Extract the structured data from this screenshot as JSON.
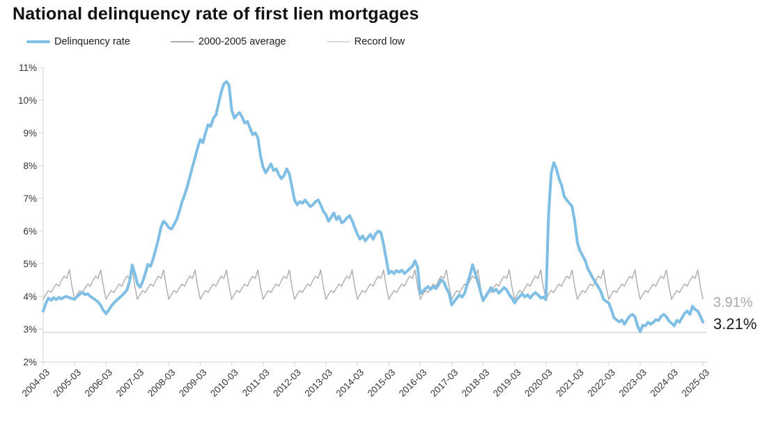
{
  "title": "National delinquency rate of first lien mortgages",
  "legend": {
    "items": [
      {
        "label": "Delinquency rate",
        "color": "#7fbee5",
        "thickness": 4
      },
      {
        "label": "2000-2005 average",
        "color": "#ababab",
        "thickness": 2
      },
      {
        "label": "Record low",
        "color": "#d9d9d9",
        "thickness": 2
      }
    ]
  },
  "annotations": {
    "avg_end_label": "3.91%",
    "avg_end_color": "#a8a8a8",
    "rate_end_label": "3.21%",
    "rate_end_color": "#1a1a1a"
  },
  "colors": {
    "axis": "#d9d9d9",
    "tick": "#d9d9d9",
    "tick_label": "#333333",
    "delinquency_line": "#7fbee5",
    "average_line": "#ababab",
    "record_low_line": "#d9d9d9"
  },
  "chart_data": {
    "type": "line",
    "title": "National delinquency rate of first lien mortgages",
    "xlabel": "",
    "ylabel": "",
    "ylim": [
      2,
      11
    ],
    "grid": false,
    "legend_position": "top",
    "y_tick_labels": [
      "2%",
      "3%",
      "4%",
      "5%",
      "6%",
      "7%",
      "8%",
      "9%",
      "10%",
      "11%"
    ],
    "y_tick_values": [
      2,
      3,
      4,
      5,
      6,
      7,
      8,
      9,
      10,
      11
    ],
    "x_tick_labels": [
      "2004-03",
      "2005-03",
      "2006-03",
      "2007-03",
      "2008-03",
      "2009-03",
      "2010-03",
      "2011-03",
      "2012-03",
      "2013-03",
      "2014-03",
      "2015-03",
      "2016-03",
      "2017-03",
      "2018-03",
      "2019-03",
      "2020-03",
      "2021-03",
      "2022-03",
      "2023-03",
      "2024-03",
      "2025-03"
    ],
    "x_frequency": "monthly",
    "x_start": "2004-03",
    "x_end": "2025-03",
    "series": [
      {
        "name": "Delinquency rate",
        "color": "#7fbee5",
        "stroke_width": 4,
        "end_value_label": "3.21%",
        "values": [
          3.55,
          3.78,
          3.95,
          3.88,
          3.96,
          3.9,
          3.97,
          3.92,
          3.98,
          4.0,
          3.96,
          3.93,
          3.91,
          4.0,
          4.07,
          4.12,
          4.05,
          4.08,
          4.0,
          3.95,
          3.89,
          3.83,
          3.72,
          3.57,
          3.47,
          3.58,
          3.7,
          3.8,
          3.88,
          3.95,
          4.02,
          4.1,
          4.2,
          4.45,
          4.96,
          4.7,
          4.38,
          4.28,
          4.45,
          4.7,
          4.98,
          4.92,
          5.15,
          5.44,
          5.75,
          6.12,
          6.3,
          6.22,
          6.1,
          6.06,
          6.2,
          6.35,
          6.6,
          6.88,
          7.1,
          7.35,
          7.65,
          7.95,
          8.25,
          8.55,
          8.8,
          8.7,
          9.0,
          9.25,
          9.2,
          9.45,
          9.55,
          9.9,
          10.25,
          10.5,
          10.57,
          10.45,
          9.7,
          9.45,
          9.55,
          9.62,
          9.48,
          9.3,
          9.35,
          9.15,
          8.95,
          9.0,
          8.85,
          8.3,
          7.95,
          7.78,
          7.92,
          8.05,
          7.85,
          7.9,
          7.72,
          7.6,
          7.7,
          7.9,
          7.75,
          7.35,
          6.95,
          6.8,
          6.9,
          6.85,
          6.95,
          6.85,
          6.75,
          6.8,
          6.9,
          6.95,
          6.8,
          6.6,
          6.5,
          6.3,
          6.42,
          6.55,
          6.35,
          6.45,
          6.25,
          6.3,
          6.4,
          6.47,
          6.32,
          6.1,
          5.9,
          5.75,
          5.85,
          5.7,
          5.8,
          5.9,
          5.75,
          5.92,
          6.0,
          5.95,
          5.6,
          5.15,
          4.7,
          4.77,
          4.7,
          4.79,
          4.74,
          4.8,
          4.7,
          4.77,
          4.85,
          4.92,
          5.09,
          4.9,
          4.08,
          4.16,
          4.24,
          4.3,
          4.22,
          4.3,
          4.24,
          4.35,
          4.51,
          4.44,
          4.25,
          4.1,
          3.74,
          3.85,
          3.95,
          4.05,
          3.98,
          4.1,
          4.4,
          4.65,
          4.97,
          4.71,
          4.45,
          4.15,
          3.87,
          4.0,
          4.12,
          4.27,
          4.15,
          4.22,
          4.1,
          4.18,
          4.27,
          4.2,
          4.05,
          3.95,
          3.8,
          3.92,
          4.0,
          4.08,
          3.98,
          4.05,
          3.95,
          4.05,
          4.12,
          4.05,
          3.95,
          3.98,
          3.9,
          6.45,
          7.76,
          8.09,
          7.91,
          7.6,
          7.4,
          7.05,
          6.95,
          6.85,
          6.75,
          6.3,
          5.65,
          5.4,
          5.25,
          5.1,
          4.85,
          4.7,
          4.55,
          4.42,
          4.29,
          4.15,
          3.91,
          3.85,
          3.8,
          3.6,
          3.35,
          3.28,
          3.22,
          3.28,
          3.15,
          3.28,
          3.4,
          3.45,
          3.38,
          3.1,
          2.92,
          3.12,
          3.1,
          3.21,
          3.15,
          3.2,
          3.29,
          3.26,
          3.39,
          3.45,
          3.38,
          3.25,
          3.18,
          3.1,
          3.27,
          3.21,
          3.35,
          3.48,
          3.55,
          3.45,
          3.7,
          3.6,
          3.55,
          3.4,
          3.21
        ]
      },
      {
        "name": "2000-2005 average",
        "color": "#ababab",
        "stroke_width": 1.4,
        "end_value_label": "3.91%",
        "pattern_note": "seasonal 12-month pattern (Mar..Feb) repeated each year 2004-03 to 2025-03",
        "seasonal_pattern_mar_to_feb": [
          3.91,
          4.06,
          4.18,
          4.12,
          4.26,
          4.38,
          4.31,
          4.49,
          4.62,
          4.55,
          4.81,
          4.3
        ]
      },
      {
        "name": "Record low",
        "color": "#d9d9d9",
        "stroke_width": 1.5,
        "constant_value": 2.9
      }
    ]
  }
}
